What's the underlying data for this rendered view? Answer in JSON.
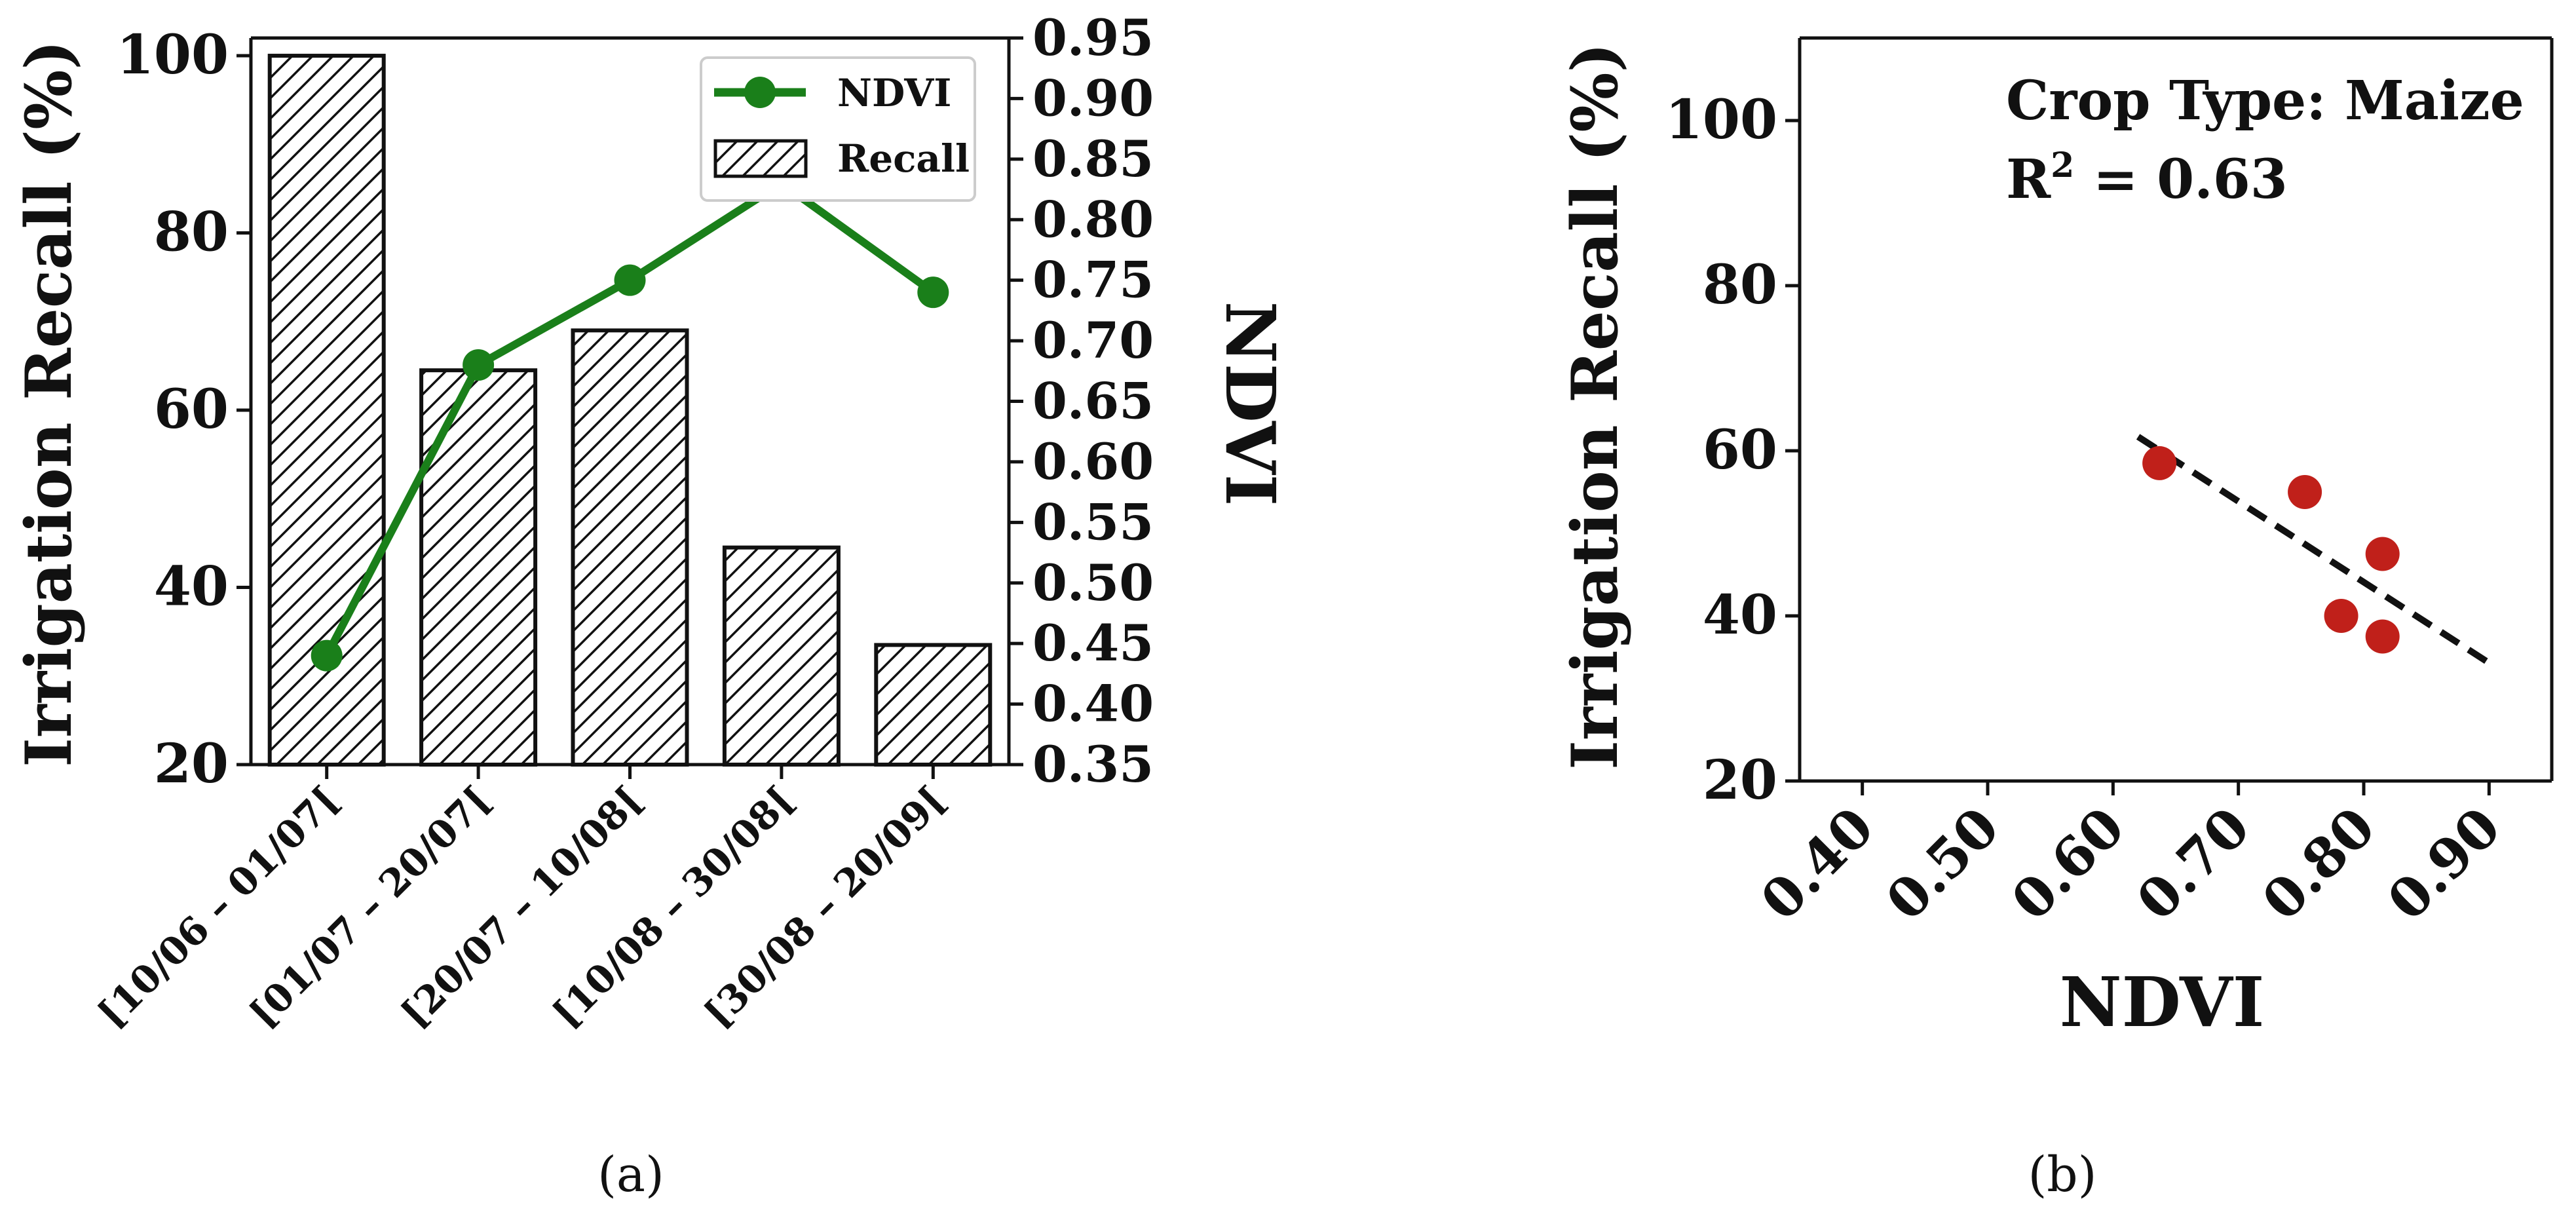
{
  "figure": {
    "panel_a_caption": "(a)",
    "panel_b_caption": "(b)"
  },
  "chart_data": [
    {
      "type": "bar",
      "panel": "a",
      "title": "",
      "categories": [
        "[10/06 – 01/07[",
        "[01/07 – 20/07[",
        "[20/07 – 10/08[",
        "[10/08 – 30/08[",
        "[30/08 – 20/09["
      ],
      "series": [
        {
          "name": "Recall",
          "kind": "bar",
          "axis": "left",
          "hatch": "diagonal",
          "values": [
            100,
            64.5,
            69,
            44.5,
            33.5
          ]
        },
        {
          "name": "NDVI",
          "kind": "line",
          "axis": "right",
          "color": "#1a7f1a",
          "values": [
            0.44,
            0.68,
            0.75,
            0.83,
            0.74
          ]
        }
      ],
      "xlabel": "",
      "ylabel": "Irrigation Recall (%)",
      "y2label": "NDVI",
      "ylim": [
        20,
        102
      ],
      "y2lim": [
        0.35,
        0.95
      ],
      "yticks": [
        "20",
        "40",
        "60",
        "80",
        "100"
      ],
      "y2ticks": [
        "0.35",
        "0.40",
        "0.45",
        "0.50",
        "0.55",
        "0.60",
        "0.65",
        "0.70",
        "0.75",
        "0.80",
        "0.85",
        "0.90",
        "0.95"
      ],
      "legend": {
        "position": "top-right",
        "entries": [
          "NDVI",
          "Recall"
        ]
      }
    },
    {
      "type": "scatter",
      "panel": "b",
      "points": [
        {
          "x": 0.637,
          "y": 58.5
        },
        {
          "x": 0.753,
          "y": 55
        },
        {
          "x": 0.782,
          "y": 40
        },
        {
          "x": 0.815,
          "y": 47.5
        },
        {
          "x": 0.815,
          "y": 37.5
        }
      ],
      "point_color": "#c0201a",
      "trendline": {
        "x": [
          0.62,
          0.9
        ],
        "y": [
          61.7,
          34.3
        ],
        "style": "dashed"
      },
      "xlabel": "NDVI",
      "ylabel": "Irrigation Recall (%)",
      "xlim": [
        0.35,
        0.95
      ],
      "ylim": [
        20,
        110
      ],
      "xticks": [
        "0.40",
        "0.50",
        "0.60",
        "0.70",
        "0.80",
        "0.90"
      ],
      "yticks": [
        "20",
        "40",
        "60",
        "80",
        "100"
      ],
      "annotation_line1": "Crop Type: Maize",
      "annotation_r2_prefix": "R",
      "annotation_r2_sup": "2",
      "annotation_r2_value": " = 0.63"
    }
  ]
}
